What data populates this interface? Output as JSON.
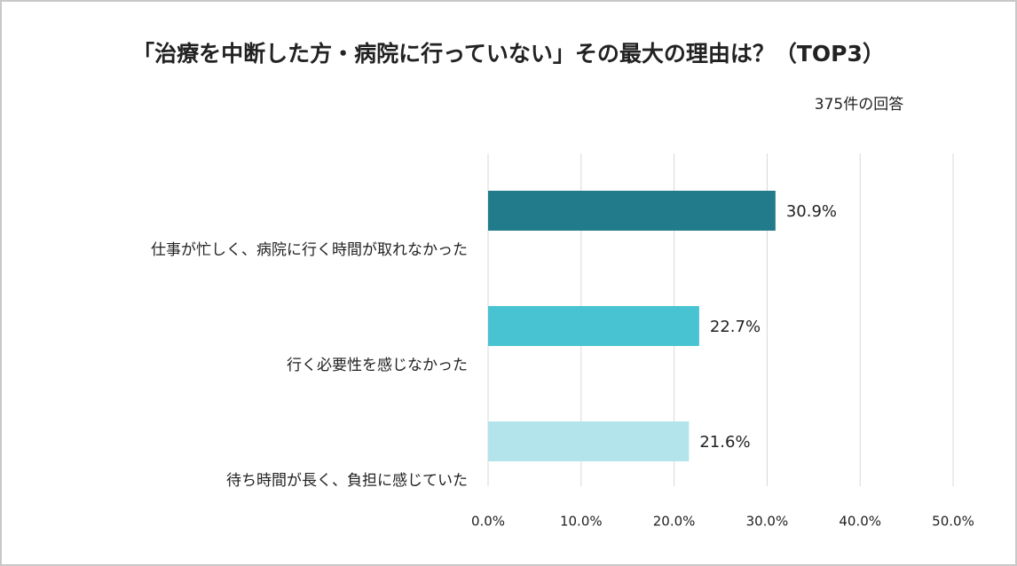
{
  "chart_data": {
    "type": "barh",
    "title": "「治療を中断した方・病院に行っていない」その最大の理由は？（TOP3）",
    "subtitle": "375件の回答",
    "categories": [
      "仕事が忙しく、病院に行く時間が取れなかった",
      "行く必要性を感じなかった",
      "待ち時間が長く、負担に感じていた"
    ],
    "values": [
      30.9,
      22.7,
      21.6
    ],
    "value_labels": [
      "30.9%",
      "22.7%",
      "21.6%"
    ],
    "colors": [
      "#217b8a",
      "#48c3d1",
      "#b3e4eb"
    ],
    "xlim": [
      0,
      50
    ],
    "xticks": [
      {
        "value": 0,
        "label": "0.0%"
      },
      {
        "value": 10,
        "label": "10.0%"
      },
      {
        "value": 20,
        "label": "20.0%"
      },
      {
        "value": 30,
        "label": "30.0%"
      },
      {
        "value": 40,
        "label": "40.0%"
      },
      {
        "value": 50,
        "label": "50.0%"
      }
    ],
    "grid": true
  }
}
